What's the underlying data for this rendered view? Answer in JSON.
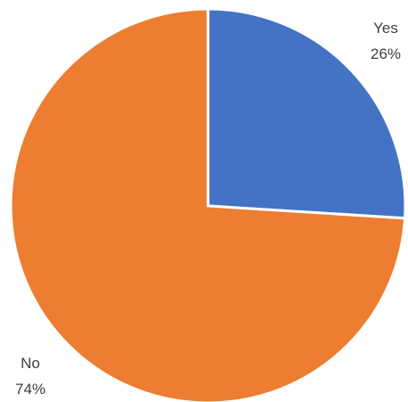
{
  "chart_data": {
    "type": "pie",
    "categories": [
      "Yes",
      "No"
    ],
    "values": [
      26,
      74
    ],
    "value_labels": [
      "26%",
      "74%"
    ],
    "colors": [
      "#4472C4",
      "#ED7D31"
    ],
    "start_angle_deg": 0,
    "direction": "clockwise",
    "legend": "none",
    "title": ""
  }
}
